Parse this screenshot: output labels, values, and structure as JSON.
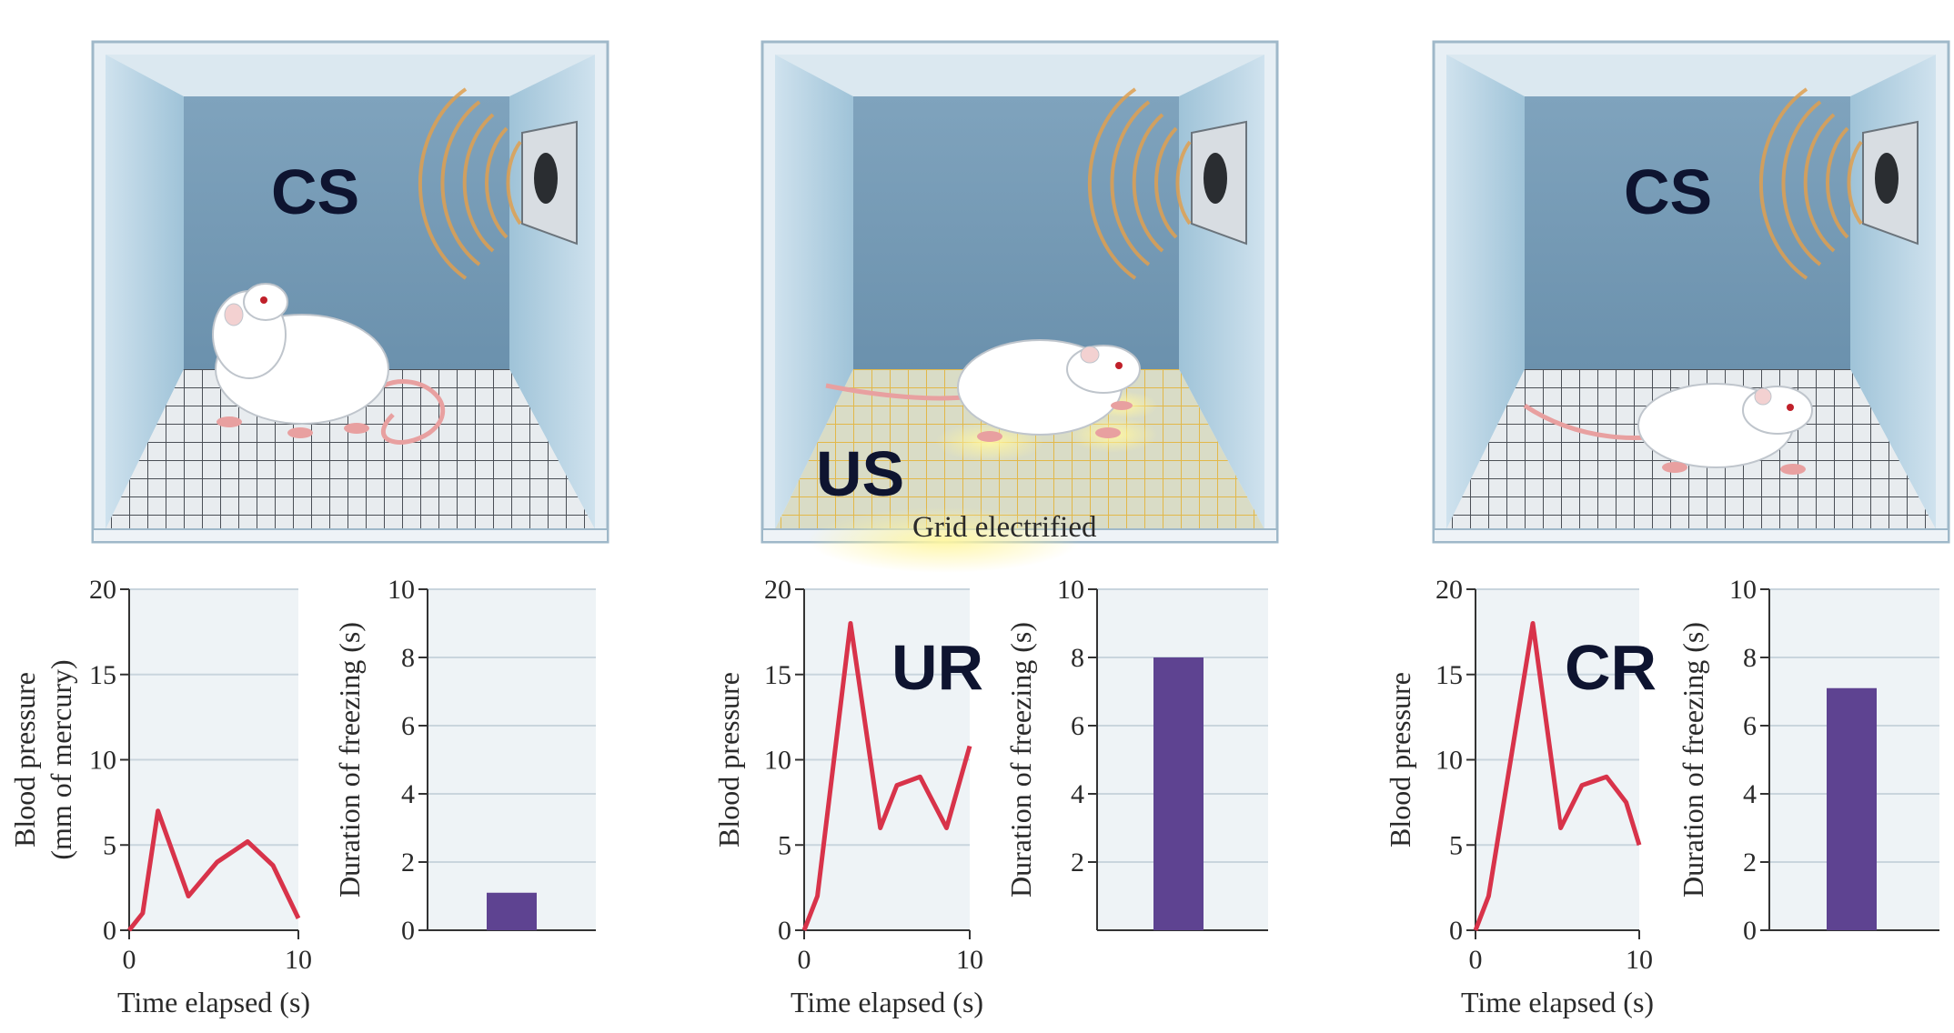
{
  "labels": {
    "panel1_stimulus": "CS",
    "panel2_stimulus": "US",
    "panel2_grid_caption": "Grid electrified",
    "panel2_response": "UR",
    "panel3_stimulus": "CS",
    "panel3_response": "CR"
  },
  "charts": {
    "blood_pressure": {
      "type": "line",
      "xlabel": "Time elapsed (s)",
      "ylabel_panel1": "Blood pressure",
      "ylabel_panel1_line2": "(mm of mercury)",
      "ylabel": "Blood pressure",
      "x_ticks": [
        "0",
        "10"
      ],
      "y_ticks": [
        "0",
        "5",
        "10",
        "15",
        "20"
      ],
      "xlim": [
        0,
        10
      ],
      "ylim": [
        0,
        20
      ],
      "line_color": "#d8334a"
    },
    "freezing": {
      "type": "bar",
      "ylabel": "Duration of freezing (s)",
      "y_ticks_panel1": [
        "0",
        "2",
        "4",
        "6",
        "8",
        "10"
      ],
      "y_ticks_panel2": [
        "2",
        "4",
        "6",
        "8",
        "10"
      ],
      "y_ticks_panel3": [
        "0",
        "2",
        "4",
        "6",
        "8",
        "10"
      ],
      "ylim": [
        0,
        10
      ],
      "bar_color": "#5e4391"
    }
  },
  "chart_data": [
    {
      "type": "line",
      "xlabel": "Time elapsed (s)",
      "ylabel": "Blood pressure (mm of mercury)",
      "xlim": [
        0,
        10
      ],
      "ylim": [
        0,
        20
      ],
      "x": [
        0,
        0.8,
        1.7,
        3.5,
        5.2,
        7.0,
        8.5,
        10
      ],
      "y": [
        0,
        1,
        7,
        2,
        4,
        5.2,
        3.8,
        0.7
      ]
    },
    {
      "type": "bar",
      "ylabel": "Duration of freezing (s)",
      "ylim": [
        0,
        10
      ],
      "values": [
        1.1
      ]
    },
    {
      "type": "line",
      "xlabel": "Time elapsed (s)",
      "ylabel": "Blood pressure",
      "xlim": [
        0,
        10
      ],
      "ylim": [
        0,
        20
      ],
      "x": [
        0,
        0.8,
        2.8,
        4.6,
        5.6,
        7.0,
        8.6,
        10
      ],
      "y": [
        0,
        2,
        18,
        6,
        8.5,
        9,
        6,
        10.8
      ]
    },
    {
      "type": "bar",
      "ylabel": "Duration of freezing (s)",
      "ylim": [
        0,
        10
      ],
      "values": [
        8
      ]
    },
    {
      "type": "line",
      "xlabel": "Time elapsed (s)",
      "ylabel": "Blood pressure",
      "xlim": [
        0,
        10
      ],
      "ylim": [
        0,
        20
      ],
      "x": [
        0,
        0.8,
        3.5,
        5.2,
        6.5,
        8.0,
        9.2,
        10
      ],
      "y": [
        0,
        2,
        18,
        6,
        8.5,
        9,
        7.5,
        5
      ]
    },
    {
      "type": "bar",
      "ylabel": "Duration of freezing (s)",
      "ylim": [
        0,
        10
      ],
      "values": [
        7.1
      ]
    }
  ]
}
